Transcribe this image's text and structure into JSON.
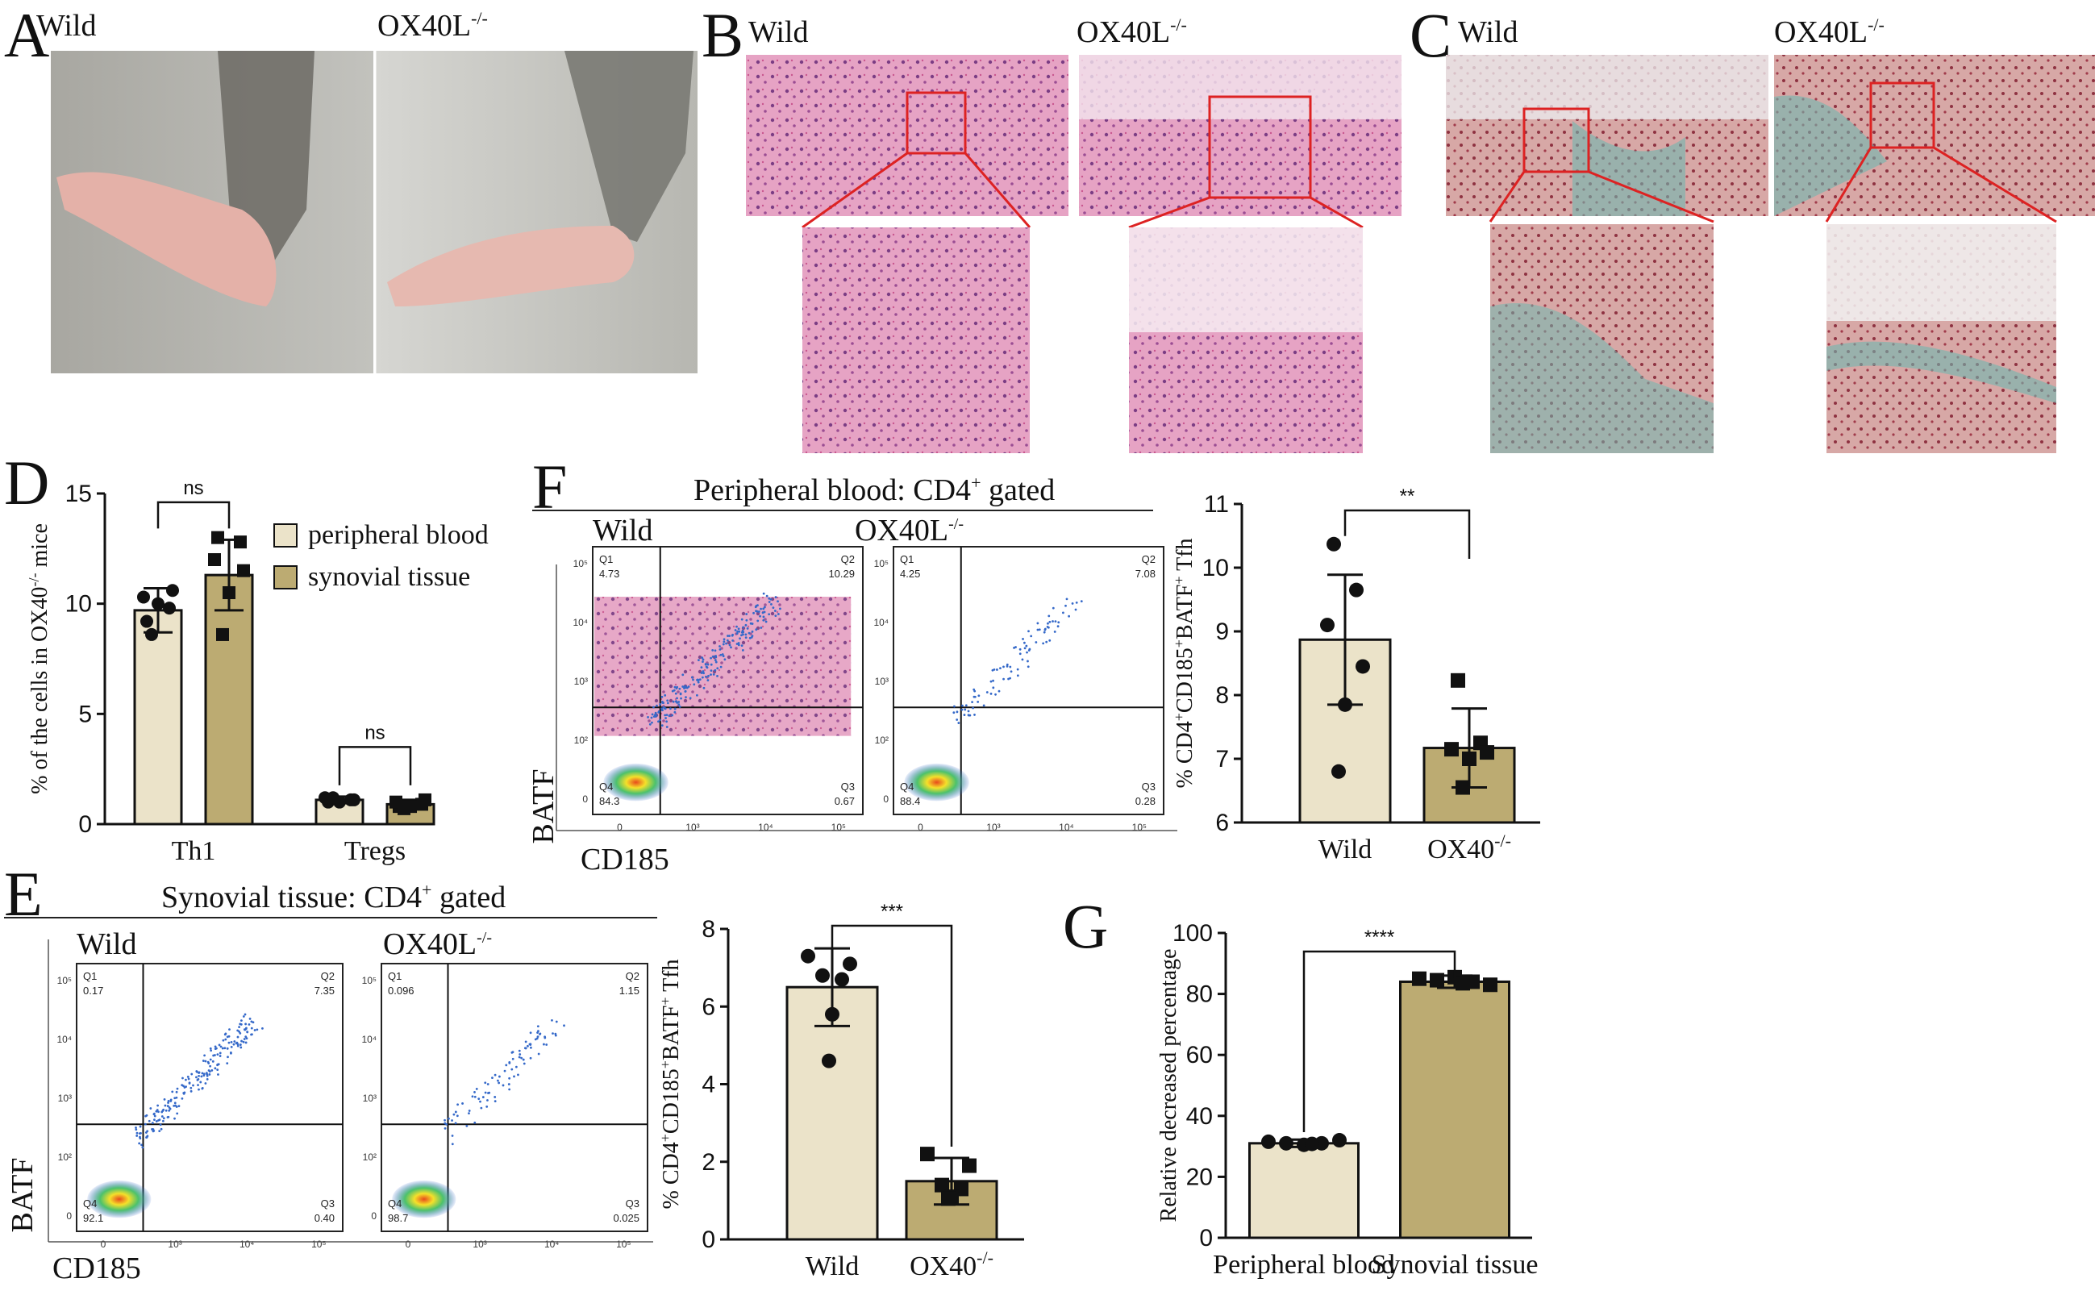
{
  "panels": {
    "A": {
      "letter": "A",
      "left_label": "Wild",
      "right_label": "OX40L",
      "right_sup": "-/-"
    },
    "B": {
      "letter": "B",
      "left_label": "Wild",
      "right_label": "OX40L",
      "right_sup": "-/-"
    },
    "C": {
      "letter": "C",
      "left_label": "Wild",
      "right_label": "OX40L",
      "right_sup": "-/-"
    },
    "D": {
      "letter": "D"
    },
    "E": {
      "letter": "E",
      "header": "Synovial tissue: CD4",
      "header_sup": "+",
      "header_tail": " gated",
      "left_label": "Wild",
      "right_label": "OX40L",
      "right_sup": "-/-",
      "y_axis": "BATF",
      "x_axis": "CD185",
      "wild_quadrants": {
        "q1": "Q1",
        "q1v": "0.17",
        "q2": "Q2",
        "q2v": "7.35",
        "q3": "Q3",
        "q3v": "0.40",
        "q4": "Q4",
        "q4v": "92.1"
      },
      "ko_quadrants": {
        "q1": "Q1",
        "q1v": "0.096",
        "q2": "Q2",
        "q2v": "1.15",
        "q3": "Q3",
        "q3v": "0.025",
        "q4": "Q4",
        "q4v": "98.7"
      }
    },
    "F": {
      "letter": "F",
      "header": "Peripheral blood: CD4",
      "header_sup": "+",
      "header_tail": " gated",
      "left_label": "Wild",
      "right_label": "OX40L",
      "right_sup": "-/-",
      "y_axis": "BATF",
      "x_axis": "CD185",
      "wild_quadrants": {
        "q1": "Q1",
        "q1v": "4.73",
        "q2": "Q2",
        "q2v": "10.29",
        "q3": "Q3",
        "q3v": "0.67",
        "q4": "Q4",
        "q4v": "84.3"
      },
      "ko_quadrants": {
        "q1": "Q1",
        "q1v": "4.25",
        "q2": "Q2",
        "q2v": "7.08",
        "q3": "Q3",
        "q3v": "0.28",
        "q4": "Q4",
        "q4v": "88.4"
      }
    },
    "G": {
      "letter": "G"
    }
  },
  "facs_ticks": {
    "x": [
      "0",
      "10³",
      "10⁴",
      "10⁵"
    ],
    "y": [
      "10⁵",
      "10⁴",
      "10³",
      "10²",
      "0"
    ]
  },
  "colors": {
    "wild_fill": "#ebe3c9",
    "ko_fill": "#bcab72",
    "red_box": "#dd2222",
    "he_pink": "#d0578f",
    "safranin_green": "#6fb8b0"
  },
  "chart_data": [
    {
      "id": "D",
      "type": "bar",
      "categories": [
        "Th1",
        "Tregs"
      ],
      "ylabel": "% of the cells in OX40",
      "ylabel_sup": "-/-",
      "ylabel_tail": " mice",
      "ylim": [
        0,
        15
      ],
      "yticks": [
        "0",
        "5",
        "10",
        "15"
      ],
      "series": [
        {
          "name": "peripheral blood",
          "values": [
            9.7,
            1.1
          ],
          "sd": [
            1.0,
            0.15
          ],
          "points": [
            [
              9.2,
              9.8,
              10.3,
              10.6,
              10.0,
              8.6
            ],
            [
              1.0,
              1.1,
              1.2,
              1.1,
              1.0,
              1.2
            ]
          ]
        },
        {
          "name": "synovial tissue",
          "values": [
            11.3,
            0.9
          ],
          "sd": [
            1.6,
            0.2
          ],
          "points": [
            [
              13.0,
              12.8,
              12.0,
              11.5,
              10.5,
              8.6
            ],
            [
              0.8,
              0.9,
              1.0,
              1.1,
              0.8,
              0.7
            ]
          ]
        }
      ],
      "significance": [
        "ns",
        "ns"
      ]
    },
    {
      "id": "F_bar",
      "type": "bar",
      "categories": [
        "Wild",
        "OX40"
      ],
      "category_sups": [
        "",
        "-/-"
      ],
      "ylabel": "% CD4+CD185+BATF+ Tfh",
      "ylim": [
        6,
        11
      ],
      "yticks": [
        "6",
        "7",
        "8",
        "9",
        "10",
        "11"
      ],
      "values": [
        8.87,
        7.17
      ],
      "sd": [
        1.02,
        0.62
      ],
      "points": [
        [
          10.37,
          9.65,
          9.1,
          8.45,
          7.85,
          6.8
        ],
        [
          8.23,
          7.25,
          7.15,
          7.1,
          7.0,
          6.55
        ]
      ],
      "significance": "**"
    },
    {
      "id": "E_bar",
      "type": "bar",
      "categories": [
        "Wild",
        "OX40"
      ],
      "category_sups": [
        "",
        "-/-"
      ],
      "ylabel": "% CD4+CD185+BATF+ Tfh",
      "ylim": [
        0,
        8
      ],
      "yticks": [
        "0",
        "2",
        "4",
        "6",
        "8"
      ],
      "values": [
        6.5,
        1.5
      ],
      "sd": [
        1.0,
        0.6
      ],
      "points": [
        [
          7.3,
          7.1,
          6.8,
          6.7,
          5.8,
          4.6
        ],
        [
          2.2,
          1.9,
          1.4,
          1.3,
          1.1,
          1.05
        ]
      ],
      "significance": "***"
    },
    {
      "id": "G",
      "type": "bar",
      "categories": [
        "Peripheral blood",
        "Synovial tissue"
      ],
      "ylabel": "Relative decreased percentage",
      "ylim": [
        0,
        100
      ],
      "yticks": [
        "0",
        "20",
        "40",
        "60",
        "80",
        "100"
      ],
      "values": [
        31,
        84
      ],
      "sd": [
        1.2,
        2.0
      ],
      "points": [
        [
          31.5,
          31.0,
          30.5,
          31.0,
          32.0,
          30.8
        ],
        [
          85.0,
          84.5,
          85.5,
          84.0,
          83.0,
          83.5
        ]
      ],
      "significance": "****"
    }
  ]
}
